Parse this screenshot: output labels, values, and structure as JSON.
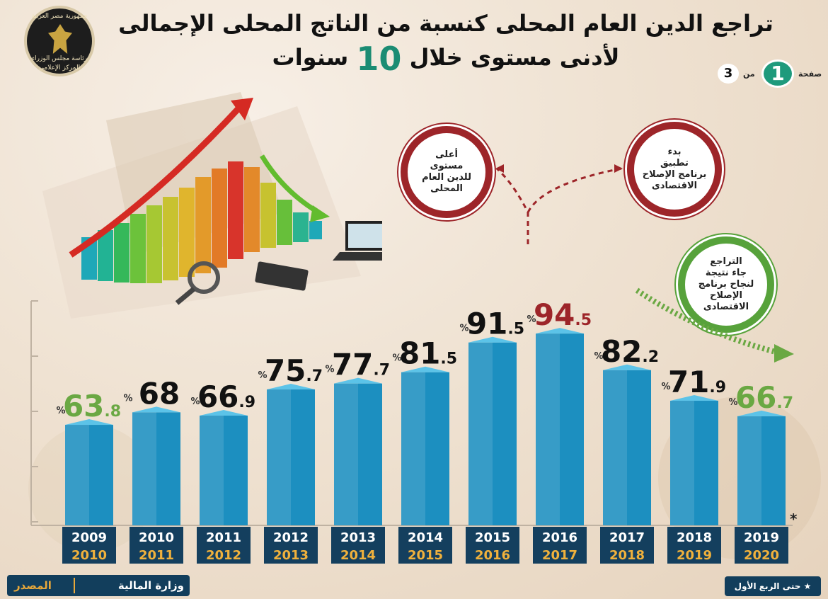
{
  "title_line1": "تراجع الدين العام المحلى كنسبة من الناتج المحلى الإجمالى",
  "title_line2_pre": "لأدنى مستوى خلال",
  "title_line2_num": "10",
  "title_line2_post": "سنوات",
  "logo": {
    "line1": "جمهورية مصر العربية",
    "line2": "رئاسة مجلس الوزراء",
    "line3": "المركز الإعلامى"
  },
  "pager": {
    "label": "صفحة",
    "current": "1",
    "of": "من",
    "total": "3"
  },
  "bubbles": {
    "highest": [
      "أعلى",
      "مستوى",
      "للدين العام",
      "المحلى"
    ],
    "reform": [
      "بدء",
      "تطبيق",
      "برنامج الإصلاح",
      "الاقتصادى"
    ],
    "decline": [
      "التراجع",
      "جاء نتيجة",
      "لنجاح برنامج",
      "الإصلاح",
      "الاقتصادى"
    ]
  },
  "colors": {
    "bar": "#1c8fc0",
    "bar_top": "#5cc3e8",
    "value_default": "#111111",
    "value_green": "#6aa843",
    "value_red": "#9d2529",
    "label_bg": "#143f5e",
    "label_year1": "#ffffff",
    "label_year2": "#f0b13c"
  },
  "chart_data": {
    "type": "bar",
    "unit": "%",
    "categories": [
      [
        "2009",
        "2010"
      ],
      [
        "2010",
        "2011"
      ],
      [
        "2011",
        "2012"
      ],
      [
        "2012",
        "2013"
      ],
      [
        "2013",
        "2014"
      ],
      [
        "2014",
        "2015"
      ],
      [
        "2015",
        "2016"
      ],
      [
        "2016",
        "2017"
      ],
      [
        "2017",
        "2018"
      ],
      [
        "2018",
        "2019"
      ],
      [
        "2019",
        "2020"
      ]
    ],
    "values": [
      63.8,
      68,
      66.9,
      75.7,
      77.7,
      81.5,
      91.5,
      94.5,
      82.2,
      71.9,
      66.7
    ],
    "value_int": [
      "63",
      "68",
      "66",
      "75",
      "77",
      "81",
      "91",
      "94",
      "82",
      "71",
      "66"
    ],
    "value_dec": [
      ".8",
      "",
      ".9",
      ".7",
      ".7",
      ".5",
      ".5",
      ".5",
      ".2",
      ".9",
      ".7"
    ],
    "highlight": [
      "green",
      "",
      "",
      "",
      "",
      "",
      "",
      "red",
      "",
      "",
      "green"
    ],
    "last_marker": "*",
    "ylim": [
      0,
      100
    ]
  },
  "footer": {
    "source_label": "المصدر",
    "source_name": "وزارة المالية",
    "note": "★ حتى الربع الأول"
  }
}
